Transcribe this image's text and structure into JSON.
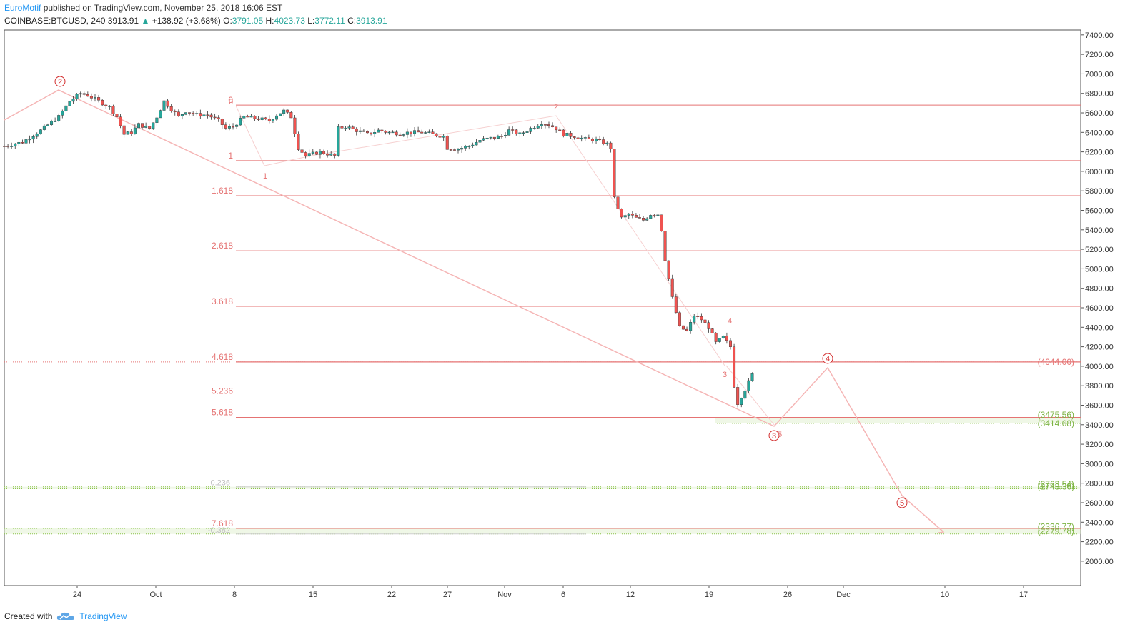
{
  "header": {
    "author": "EuroMotif",
    "published_text": "published on TradingView.com, November 25, 2018 16:06 EST",
    "symbol": "COINBASE:BTCUSD, 240",
    "last": "3913.91",
    "change": "+138.92 (+3.68%)",
    "ohlc": {
      "o_label": "O:",
      "o": "3791.05",
      "h_label": "H:",
      "h": "4023.73",
      "l_label": "L:",
      "l": "3772.11",
      "c_label": "C:",
      "c": "3913.91"
    }
  },
  "footer": {
    "created_with": "Created with",
    "brand": "TradingView"
  },
  "colors": {
    "up": "#26a69a",
    "down": "#ef5350",
    "fib": "#e57373",
    "fib_light": "#f5b5b5",
    "green_zone": "#8bc34a",
    "accent": "#2196f3"
  },
  "chart_data": {
    "type": "candlestick",
    "ylim": [
      1750,
      7450
    ],
    "y_ticks": [
      2000,
      2200,
      2400,
      2600,
      2800,
      3000,
      3200,
      3400,
      3600,
      3800,
      4000,
      4200,
      4400,
      4600,
      4800,
      5000,
      5200,
      5400,
      5600,
      5800,
      6000,
      6200,
      6400,
      6600,
      6800,
      7000,
      7200,
      7400
    ],
    "x_ticks": [
      "24",
      "Oct",
      "8",
      "15",
      "22",
      "27",
      "Nov",
      "6",
      "12",
      "19",
      "26",
      "Dec",
      "10",
      "17"
    ],
    "price_path": [
      [
        0,
        6260
      ],
      [
        5,
        6300
      ],
      [
        10,
        6420
      ],
      [
        15,
        6560
      ],
      [
        18,
        6720
      ],
      [
        21,
        6800
      ],
      [
        23,
        6780
      ],
      [
        26,
        6720
      ],
      [
        29,
        6660
      ],
      [
        31,
        6560
      ],
      [
        33,
        6380
      ],
      [
        35,
        6400
      ],
      [
        37,
        6480
      ],
      [
        40,
        6440
      ],
      [
        42,
        6560
      ],
      [
        44,
        6720
      ],
      [
        46,
        6640
      ],
      [
        48,
        6560
      ],
      [
        50,
        6620
      ],
      [
        53,
        6580
      ],
      [
        56,
        6580
      ],
      [
        59,
        6520
      ],
      [
        61,
        6440
      ],
      [
        63,
        6460
      ],
      [
        66,
        6560
      ],
      [
        70,
        6540
      ],
      [
        73,
        6520
      ],
      [
        75,
        6580
      ],
      [
        77,
        6620
      ],
      [
        79,
        6560
      ],
      [
        81,
        6240
      ],
      [
        83,
        6160
      ],
      [
        85,
        6180
      ],
      [
        87,
        6200
      ],
      [
        89,
        6180
      ],
      [
        91,
        6160
      ],
      [
        92,
        6440
      ],
      [
        94,
        6460
      ],
      [
        97,
        6420
      ],
      [
        100,
        6380
      ],
      [
        103,
        6420
      ],
      [
        106,
        6400
      ],
      [
        109,
        6390
      ],
      [
        112,
        6400
      ],
      [
        115,
        6400
      ],
      [
        118,
        6380
      ],
      [
        121,
        6360
      ],
      [
        122,
        6240
      ],
      [
        125,
        6230
      ],
      [
        128,
        6260
      ],
      [
        131,
        6320
      ],
      [
        134,
        6340
      ],
      [
        137,
        6360
      ],
      [
        139,
        6420
      ],
      [
        142,
        6380
      ],
      [
        145,
        6440
      ],
      [
        148,
        6500
      ],
      [
        150,
        6480
      ],
      [
        152,
        6440
      ],
      [
        154,
        6380
      ],
      [
        157,
        6360
      ],
      [
        160,
        6330
      ],
      [
        163,
        6320
      ],
      [
        166,
        6280
      ],
      [
        167,
        6240
      ],
      [
        168,
        5720
      ],
      [
        170,
        5520
      ],
      [
        172,
        5560
      ],
      [
        174,
        5520
      ],
      [
        176,
        5500
      ],
      [
        178,
        5560
      ],
      [
        180,
        5560
      ],
      [
        181,
        5400
      ],
      [
        182,
        5100
      ],
      [
        183,
        4900
      ],
      [
        184,
        4700
      ],
      [
        186,
        4400
      ],
      [
        188,
        4360
      ],
      [
        190,
        4520
      ],
      [
        192,
        4480
      ],
      [
        194,
        4400
      ],
      [
        196,
        4240
      ],
      [
        198,
        4300
      ],
      [
        200,
        4200
      ],
      [
        201,
        3800
      ],
      [
        202,
        3620
      ],
      [
        204,
        3760
      ],
      [
        206,
        3913
      ]
    ],
    "fib_levels": [
      {
        "label": "0",
        "price": 6680,
        "bold": false
      },
      {
        "label": "1",
        "price": 6110,
        "bold": false
      },
      {
        "label": "1.618",
        "price": 5750,
        "bold": false
      },
      {
        "label": "2.618",
        "price": 5185,
        "bold": false
      },
      {
        "label": "3.618",
        "price": 4615,
        "bold": false
      },
      {
        "label": "4.618",
        "price": 4044,
        "bold": true
      },
      {
        "label": "5.236",
        "price": 3695,
        "bold": false
      },
      {
        "label": "5.618",
        "price": 3475,
        "bold": false
      },
      {
        "label": "7.618",
        "price": 2336,
        "bold": false
      }
    ],
    "gray_levels": [
      {
        "label": "-0.236",
        "price": 2763
      },
      {
        "label": "-0.382",
        "price": 2279
      }
    ],
    "price_labels": [
      {
        "text": "(4044.00)",
        "price": 4044,
        "color": "red"
      },
      {
        "text": "(3475.56)",
        "price": 3500,
        "color": "green"
      },
      {
        "text": "(3414.68)",
        "price": 3414,
        "color": "green"
      },
      {
        "text": "(2763.54)",
        "price": 2790,
        "color": "green"
      },
      {
        "text": "(2743.36)",
        "price": 2763,
        "color": "green"
      },
      {
        "text": "(2336.77)",
        "price": 2355,
        "color": "green"
      },
      {
        "text": "(2279.78)",
        "price": 2310,
        "color": "green"
      }
    ],
    "waves": [
      {
        "label": "2",
        "price": 6820,
        "t": 21
      },
      {
        "label": "3",
        "price": 3414,
        "t": 201
      },
      {
        "label": "4",
        "price": 4044,
        "t": 224
      },
      {
        "label": "5",
        "price": 2763,
        "t": 251
      }
    ],
    "sub_labels": [
      "0",
      "1",
      "2",
      "3",
      "4",
      "5"
    ]
  }
}
